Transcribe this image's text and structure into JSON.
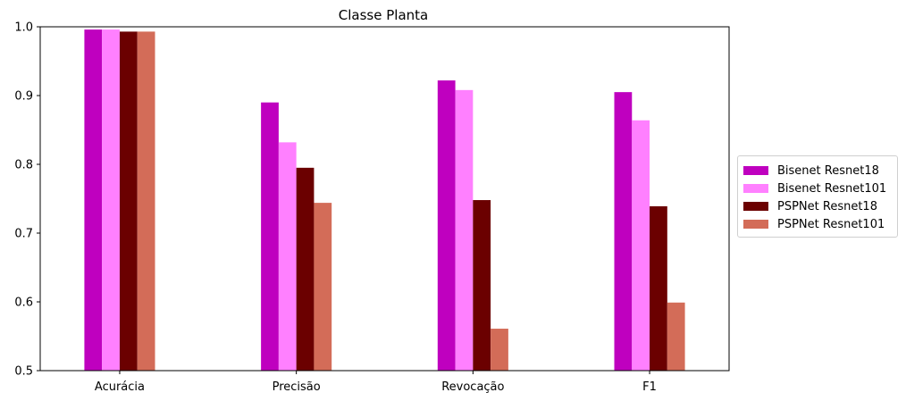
{
  "chart_data": {
    "type": "bar",
    "title": "Classe Planta",
    "xlabel": "",
    "ylabel": "",
    "categories": [
      "Acurácia",
      "Precisão",
      "Revocação",
      "F1"
    ],
    "ylim": [
      0.5,
      1.0
    ],
    "yticks": [
      "0.5",
      "0.6",
      "0.7",
      "0.8",
      "0.9",
      "1.0"
    ],
    "legend_position": "center-right-outside",
    "grid": false,
    "series": [
      {
        "name": "Bisenet Resnet18",
        "color": "#bf00bf",
        "values": [
          0.996,
          0.89,
          0.922,
          0.905
        ]
      },
      {
        "name": "Bisenet Resnet101",
        "color": "#ff80ff",
        "values": [
          0.996,
          0.832,
          0.908,
          0.864
        ]
      },
      {
        "name": "PSPNet Resnet18",
        "color": "#6b0000",
        "values": [
          0.993,
          0.795,
          0.748,
          0.739
        ]
      },
      {
        "name": "PSPNet Resnet101",
        "color": "#d36c58",
        "values": [
          0.993,
          0.744,
          0.561,
          0.599
        ]
      }
    ]
  }
}
